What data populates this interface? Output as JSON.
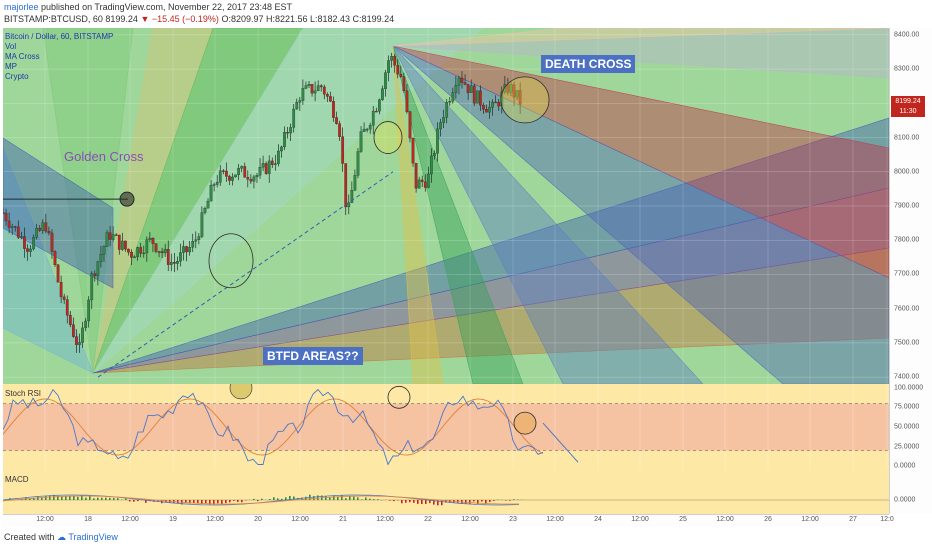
{
  "header": {
    "user": "majorlee",
    "published": "published on TradingView.com, November 22, 2017 23:48 EST",
    "symbol": "BITSTAMP:BTCUSD, 60",
    "last": "8199.24",
    "change": "−15.45 (−0.19%)",
    "ohlc": "O:8209.97 H:8221.56 L:8182.43 C:8199.24"
  },
  "legend": [
    "Bitcoin / Dollar, 60, BITSTAMP",
    "Vol",
    "MA Cross",
    "MP",
    "Crypto"
  ],
  "annotations": {
    "golden_cross": "Golden Cross",
    "death_cross": "DEATH CROSS",
    "btfd": "BTFD AREAS??"
  },
  "price_tag": "8199.24",
  "time_tag": "11:30",
  "rsi_title": "Stoch RSI",
  "macd_title": "MACD",
  "footer": {
    "created": "Created with",
    "brand": "TradingView"
  },
  "colors": {
    "up": "#2f8c45",
    "down": "#c0261e",
    "plot_bg": "#9fd79a",
    "indicator_bg": "#fde8a6",
    "banner": "#4c70c2"
  },
  "chart_data": [
    {
      "type": "candlestick",
      "title": "Bitcoin / Dollar, 60, BITSTAMP",
      "x_ticks": [
        "12:00",
        "18",
        "12:00",
        "19",
        "12:00",
        "20",
        "12:00",
        "21",
        "12:00",
        "22",
        "12:00",
        "23",
        "12:00",
        "24",
        "12:00",
        "25",
        "12:00",
        "26",
        "12:00",
        "27",
        "12:0"
      ],
      "y_ticks": [
        8400,
        8300,
        8200,
        8100,
        8000,
        7900,
        7800,
        7700,
        7600,
        7500,
        7400
      ],
      "ylim": [
        7380,
        8420
      ],
      "approx_close_path": [
        {
          "x": 0.0,
          "y": 7880
        },
        {
          "x": 0.6,
          "y": 7780
        },
        {
          "x": 1.0,
          "y": 7850
        },
        {
          "x": 1.4,
          "y": 7620
        },
        {
          "x": 1.8,
          "y": 7480
        },
        {
          "x": 2.1,
          "y": 7700
        },
        {
          "x": 2.5,
          "y": 7820
        },
        {
          "x": 3.0,
          "y": 7760
        },
        {
          "x": 3.5,
          "y": 7800
        },
        {
          "x": 4.0,
          "y": 7730
        },
        {
          "x": 4.5,
          "y": 7790
        },
        {
          "x": 5.0,
          "y": 7980
        },
        {
          "x": 5.5,
          "y": 8000
        },
        {
          "x": 6.0,
          "y": 7990
        },
        {
          "x": 6.5,
          "y": 8050
        },
        {
          "x": 7.0,
          "y": 8230
        },
        {
          "x": 7.5,
          "y": 8250
        },
        {
          "x": 7.9,
          "y": 8150
        },
        {
          "x": 8.1,
          "y": 7860
        },
        {
          "x": 8.4,
          "y": 8090
        },
        {
          "x": 8.8,
          "y": 8200
        },
        {
          "x": 9.1,
          "y": 8340
        },
        {
          "x": 9.4,
          "y": 8270
        },
        {
          "x": 9.7,
          "y": 7960
        },
        {
          "x": 10.0,
          "y": 7980
        },
        {
          "x": 10.3,
          "y": 8150
        },
        {
          "x": 10.7,
          "y": 8290
        },
        {
          "x": 11.1,
          "y": 8220
        },
        {
          "x": 11.5,
          "y": 8180
        },
        {
          "x": 11.9,
          "y": 8250
        },
        {
          "x": 12.2,
          "y": 8200
        }
      ]
    },
    {
      "type": "line",
      "title": "Stoch RSI",
      "y_ticks": [
        100.0,
        75.0,
        50.0,
        25.0,
        0.0
      ],
      "ylim": [
        -5,
        105
      ]
    },
    {
      "type": "bar",
      "title": "MACD",
      "y_ticks": [
        0.0
      ]
    }
  ]
}
